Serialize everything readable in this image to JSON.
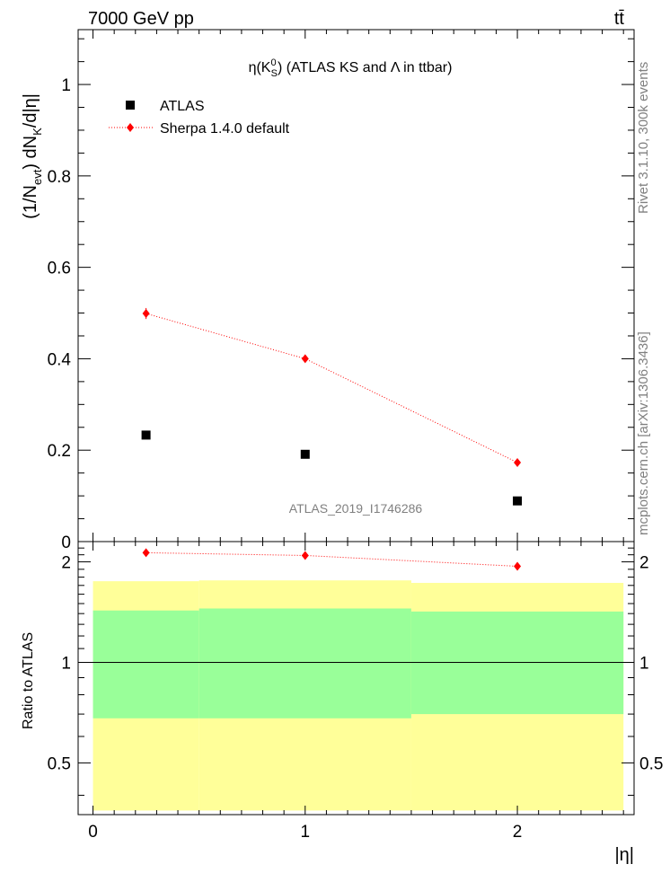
{
  "header": {
    "energy_label": "7000 GeV pp",
    "process_label": "tt̄"
  },
  "side_labels": {
    "rivet": "Rivet 3.1.10,  300k events",
    "mcplots": "mcplots.cern.ch [arXiv:1306.3436]"
  },
  "chart_data": [
    {
      "type": "scatter",
      "title": "η(K⁰S) (ATLAS KS and Λ in ttbar)",
      "watermark": "ATLAS_2019_I1746286",
      "xlabel": "|η|",
      "ylabel": "(1/Nevt) dNK/d|η|",
      "xlim": [
        -0.07,
        2.55
      ],
      "ylim": [
        0,
        1.12
      ],
      "y_ticks": [
        "0",
        "0.2",
        "0.4",
        "0.6",
        "0.8",
        "1"
      ],
      "legend_position": "top-left",
      "series": [
        {
          "name": "ATLAS",
          "marker": "square",
          "color": "#000000",
          "x": [
            0.25,
            1.0,
            2.0
          ],
          "values": [
            0.233,
            0.191,
            0.089
          ]
        },
        {
          "name": "Sherpa 1.4.0 default",
          "marker": "diamond",
          "color": "#ff0000",
          "line": "dotted",
          "x": [
            0.25,
            1.0,
            2.0
          ],
          "values": [
            0.499,
            0.4,
            0.173
          ],
          "errors": [
            0.012,
            0.005,
            0.005
          ]
        }
      ]
    },
    {
      "type": "scatter",
      "title": "",
      "xlabel": "|η|",
      "ylabel": "Ratio to ATLAS",
      "xlim": [
        -0.07,
        2.55
      ],
      "ylim": [
        0.35,
        2.3
      ],
      "log_y": true,
      "x_ticks": [
        "0",
        "1",
        "2"
      ],
      "y_ticks": [
        "0.5",
        "1",
        "2"
      ],
      "reference_line": 1,
      "bands": {
        "bins": [
          [
            0.0,
            0.5
          ],
          [
            0.5,
            1.5
          ],
          [
            1.5,
            2.5
          ]
        ],
        "yellow_low": [
          0.36,
          0.36,
          0.36
        ],
        "yellow_high": [
          1.75,
          1.76,
          1.73
        ],
        "green_low": [
          0.68,
          0.68,
          0.7
        ],
        "green_high": [
          1.43,
          1.45,
          1.42
        ],
        "yellow_color": "#ffff99",
        "green_color": "#99ff99"
      },
      "series": [
        {
          "name": "Sherpa 1.4.0 default / ATLAS",
          "marker": "diamond",
          "color": "#ff0000",
          "line": "dotted",
          "x": [
            0.25,
            1.0,
            2.0
          ],
          "values": [
            2.13,
            2.09,
            1.94
          ]
        }
      ]
    }
  ]
}
